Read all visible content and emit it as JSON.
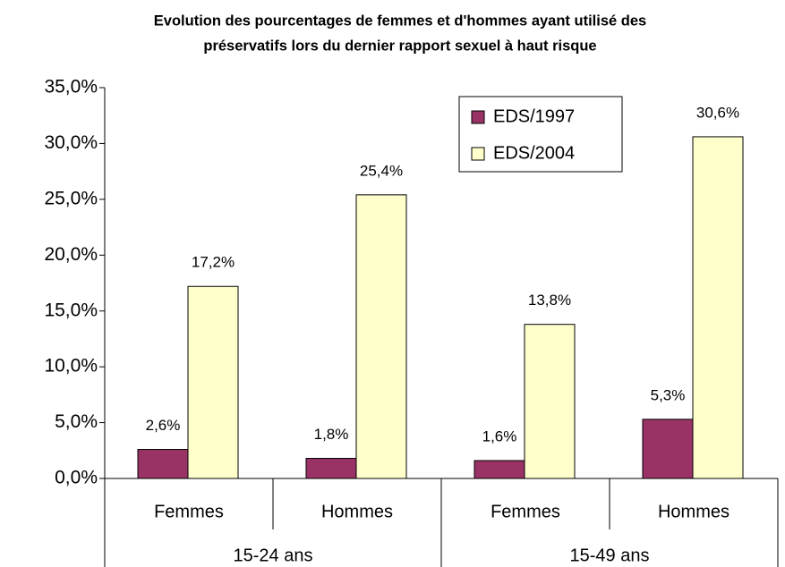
{
  "chart_data": {
    "type": "bar",
    "title": [
      "Evolution des pourcentages de femmes et d'hommes ayant utilisé des",
      "préservatifs lors du dernier rapport sexuel à haut risque"
    ],
    "categories": [
      "Femmes",
      "Hommes",
      "Femmes",
      "Hommes"
    ],
    "groups": [
      "15-24 ans",
      "15-49 ans"
    ],
    "series": [
      {
        "name": "EDS/1997",
        "color": "#993366",
        "values": [
          2.6,
          1.8,
          1.6,
          5.3
        ],
        "value_labels": [
          "2,6%",
          "1,8%",
          "1,6%",
          "5,3%"
        ]
      },
      {
        "name": "EDS/2004",
        "color": "#FFFFCC",
        "values": [
          17.2,
          25.4,
          13.8,
          30.6
        ],
        "value_labels": [
          "17,2%",
          "25,4%",
          "13,8%",
          "30,6%"
        ]
      }
    ],
    "ylim": [
      0,
      35
    ],
    "yticks": [
      {
        "value": 0,
        "label": "0,0%"
      },
      {
        "value": 5,
        "label": "5,0%"
      },
      {
        "value": 10,
        "label": "10,0%"
      },
      {
        "value": 15,
        "label": "15,0%"
      },
      {
        "value": 20,
        "label": "20,0%"
      },
      {
        "value": 25,
        "label": "25,0%"
      },
      {
        "value": 30,
        "label": "30,0%"
      },
      {
        "value": 35,
        "label": "35,0%"
      }
    ],
    "grid": false,
    "legend": "top-right"
  }
}
